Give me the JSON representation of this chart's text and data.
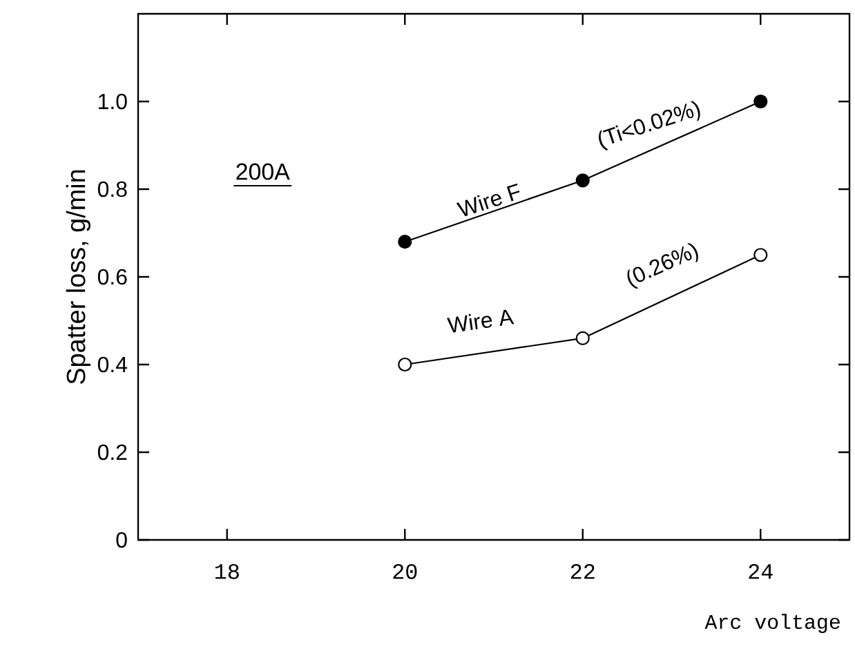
{
  "chart_data": {
    "type": "line",
    "xlabel": "Arc voltage",
    "ylabel": "Spatter loss, g/min",
    "x": [
      20,
      22,
      24
    ],
    "series": [
      {
        "name": "Wire F",
        "color": "#000000",
        "values": [
          0.68,
          0.82,
          1.0
        ]
      },
      {
        "name": "Wire A",
        "color": "#000000",
        "values": [
          0.4,
          0.46,
          0.65
        ]
      }
    ],
    "annotations": [
      "(Ti<0.02%)",
      "(0.26%)",
      "200A"
    ],
    "xlim": [
      17,
      25
    ],
    "ylim": [
      0,
      1.2
    ],
    "xticks": [
      18,
      20,
      22,
      24
    ],
    "yticks": [
      {
        "value": 0,
        "label": "0"
      },
      {
        "value": 0.2,
        "label": "0.2"
      },
      {
        "value": 0.4,
        "label": "0.4"
      },
      {
        "value": 0.6,
        "label": "0.6"
      },
      {
        "value": 0.8,
        "label": "0.8"
      },
      {
        "value": 1.0,
        "label": "1.0"
      }
    ],
    "marker": "circle",
    "line_style": "solid",
    "grid": false,
    "legend": false
  }
}
